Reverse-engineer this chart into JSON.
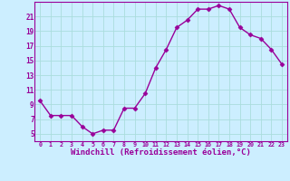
{
  "x": [
    0,
    1,
    2,
    3,
    4,
    5,
    6,
    7,
    8,
    9,
    10,
    11,
    12,
    13,
    14,
    15,
    16,
    17,
    18,
    19,
    20,
    21,
    22,
    23
  ],
  "y": [
    9.5,
    7.5,
    7.5,
    7.5,
    6.0,
    5.0,
    5.5,
    5.5,
    8.5,
    8.5,
    10.5,
    14.0,
    16.5,
    19.5,
    20.5,
    22.0,
    22.0,
    22.5,
    22.0,
    19.5,
    18.5,
    18.0,
    16.5,
    14.5
  ],
  "line_color": "#990099",
  "marker": "D",
  "markersize": 2.5,
  "linewidth": 1.0,
  "bg_color": "#cceeff",
  "grid_color": "#aadddd",
  "tick_color": "#990099",
  "xlabel": "Windchill (Refroidissement éolien,°C)",
  "xlabel_fontsize": 6.5,
  "ytick_labels": [
    "5",
    "7",
    "9",
    "11",
    "13",
    "15",
    "17",
    "19",
    "21"
  ],
  "ytick_values": [
    5,
    7,
    9,
    11,
    13,
    15,
    17,
    19,
    21
  ],
  "xtick_values": [
    0,
    1,
    2,
    3,
    4,
    5,
    6,
    7,
    8,
    9,
    10,
    11,
    12,
    13,
    14,
    15,
    16,
    17,
    18,
    19,
    20,
    21,
    22,
    23
  ],
  "ylim": [
    4.0,
    23.0
  ],
  "xlim": [
    -0.5,
    23.5
  ]
}
